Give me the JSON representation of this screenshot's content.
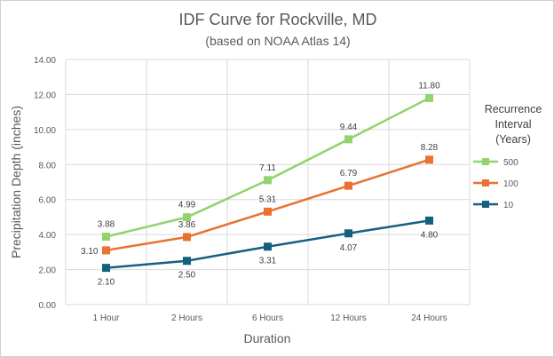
{
  "chart_data": {
    "type": "line",
    "title": "IDF Curve for Rockville, MD",
    "subtitle": "(based on NOAA Atlas 14)",
    "xlabel": "Duration",
    "ylabel": "Precipitation Depth (inches)",
    "categories": [
      "1 Hour",
      "2 Hours",
      "6 Hours",
      "12 Hours",
      "24 Hours"
    ],
    "ylim": [
      0,
      14
    ],
    "yticks": [
      "0.00",
      "2.00",
      "4.00",
      "6.00",
      "8.00",
      "10.00",
      "12.00",
      "14.00"
    ],
    "grid": true,
    "legend": {
      "title": "Recurrence Interval (Years)",
      "title_lines": [
        "Recurrence",
        "Interval",
        "(Years)"
      ],
      "position": "right"
    },
    "series": [
      {
        "name": "500",
        "color": "#92d36e",
        "values": [
          3.88,
          4.99,
          7.11,
          9.44,
          11.8
        ],
        "labels": [
          "3.88",
          "4.99",
          "7.11",
          "9.44",
          "11.80"
        ]
      },
      {
        "name": "100",
        "color": "#e97132",
        "values": [
          3.1,
          3.86,
          5.31,
          6.79,
          8.28
        ],
        "labels": [
          "3.10",
          "3.86",
          "5.31",
          "6.79",
          "8.28"
        ]
      },
      {
        "name": "10",
        "color": "#156082",
        "values": [
          2.1,
          2.5,
          3.31,
          4.07,
          4.8
        ],
        "labels": [
          "2.10",
          "2.50",
          "3.31",
          "4.07",
          "4.80"
        ]
      }
    ]
  }
}
